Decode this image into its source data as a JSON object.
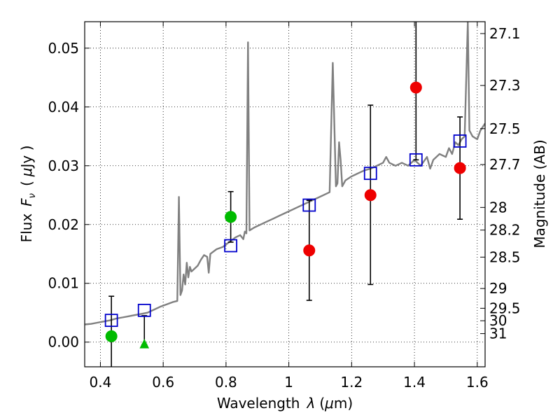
{
  "chart_data": {
    "type": "scatter",
    "xlabel_prefix": "Wavelength",
    "xlabel_var": "λ",
    "xlabel_unit_open": "(",
    "xlabel_unit_mu": "μ",
    "xlabel_unit_rest": "m)",
    "ylabel_prefix": "Flux",
    "ylabel_var": "F",
    "ylabel_sub": "ν",
    "ylabel_unit_open": "(",
    "ylabel_unit_mu": "μ",
    "ylabel_unit_rest": "Jy )",
    "y2label": "Magnitude (AB)",
    "xlim": [
      0.35,
      1.625
    ],
    "ylim": [
      -0.0042,
      0.0545
    ],
    "grid": true,
    "x_ticks": [
      {
        "value": 0.4,
        "label": "0.4"
      },
      {
        "value": 0.6,
        "label": "0.6"
      },
      {
        "value": 0.8,
        "label": "0.8"
      },
      {
        "value": 1.0,
        "label": "1"
      },
      {
        "value": 1.2,
        "label": "1.2"
      },
      {
        "value": 1.4,
        "label": "1.4"
      },
      {
        "value": 1.6,
        "label": "1.6"
      }
    ],
    "y_ticks": [
      {
        "value": 0.0,
        "label": "0.00"
      },
      {
        "value": 0.01,
        "label": "0.01"
      },
      {
        "value": 0.02,
        "label": "0.02"
      },
      {
        "value": 0.03,
        "label": "0.03"
      },
      {
        "value": 0.04,
        "label": "0.04"
      },
      {
        "value": 0.05,
        "label": "0.05"
      }
    ],
    "y2_ticks": [
      {
        "value": 27.1,
        "label": "27.1"
      },
      {
        "value": 27.3,
        "label": "27.3"
      },
      {
        "value": 27.5,
        "label": "27.5"
      },
      {
        "value": 27.7,
        "label": "27.7"
      },
      {
        "value": 28.0,
        "label": "28"
      },
      {
        "value": 28.2,
        "label": "28.2"
      },
      {
        "value": 28.5,
        "label": "28.5"
      },
      {
        "value": 29.0,
        "label": "29"
      },
      {
        "value": 29.5,
        "label": "29.5"
      },
      {
        "value": 30.0,
        "label": "30"
      },
      {
        "value": 31.0,
        "label": "31"
      }
    ],
    "series": [
      {
        "kind": "spectrum_line",
        "color": "#808080",
        "points": [
          [
            0.35,
            0.003
          ],
          [
            0.37,
            0.0031
          ],
          [
            0.39,
            0.0033
          ],
          [
            0.41,
            0.0035
          ],
          [
            0.43,
            0.0037
          ],
          [
            0.45,
            0.004
          ],
          [
            0.47,
            0.0042
          ],
          [
            0.49,
            0.0044
          ],
          [
            0.51,
            0.0046
          ],
          [
            0.53,
            0.0048
          ],
          [
            0.55,
            0.005
          ],
          [
            0.57,
            0.0055
          ],
          [
            0.59,
            0.006
          ],
          [
            0.61,
            0.0064
          ],
          [
            0.63,
            0.0068
          ],
          [
            0.645,
            0.007
          ],
          [
            0.65,
            0.0247
          ],
          [
            0.655,
            0.008
          ],
          [
            0.66,
            0.0088
          ],
          [
            0.665,
            0.0115
          ],
          [
            0.67,
            0.0098
          ],
          [
            0.675,
            0.0135
          ],
          [
            0.68,
            0.011
          ],
          [
            0.685,
            0.0128
          ],
          [
            0.69,
            0.012
          ],
          [
            0.7,
            0.0125
          ],
          [
            0.71,
            0.013
          ],
          [
            0.72,
            0.014
          ],
          [
            0.73,
            0.0148
          ],
          [
            0.74,
            0.0145
          ],
          [
            0.745,
            0.0118
          ],
          [
            0.75,
            0.015
          ],
          [
            0.77,
            0.0158
          ],
          [
            0.79,
            0.0162
          ],
          [
            0.81,
            0.017
          ],
          [
            0.83,
            0.0178
          ],
          [
            0.845,
            0.0182
          ],
          [
            0.855,
            0.0175
          ],
          [
            0.86,
            0.0188
          ],
          [
            0.865,
            0.0185
          ],
          [
            0.87,
            0.051
          ],
          [
            0.875,
            0.019
          ],
          [
            0.89,
            0.0195
          ],
          [
            0.91,
            0.02
          ],
          [
            0.93,
            0.0205
          ],
          [
            0.95,
            0.021
          ],
          [
            0.97,
            0.0215
          ],
          [
            0.99,
            0.022
          ],
          [
            1.01,
            0.0225
          ],
          [
            1.03,
            0.023
          ],
          [
            1.05,
            0.0235
          ],
          [
            1.07,
            0.024
          ],
          [
            1.09,
            0.0245
          ],
          [
            1.11,
            0.025
          ],
          [
            1.13,
            0.0255
          ],
          [
            1.14,
            0.0475
          ],
          [
            1.15,
            0.0265
          ],
          [
            1.155,
            0.027
          ],
          [
            1.16,
            0.034
          ],
          [
            1.165,
            0.031
          ],
          [
            1.17,
            0.0265
          ],
          [
            1.18,
            0.0275
          ],
          [
            1.2,
            0.0282
          ],
          [
            1.22,
            0.0287
          ],
          [
            1.24,
            0.0292
          ],
          [
            1.26,
            0.0295
          ],
          [
            1.28,
            0.03
          ],
          [
            1.3,
            0.0305
          ],
          [
            1.31,
            0.0315
          ],
          [
            1.32,
            0.0305
          ],
          [
            1.34,
            0.03
          ],
          [
            1.36,
            0.0305
          ],
          [
            1.38,
            0.03
          ],
          [
            1.4,
            0.031
          ],
          [
            1.42,
            0.03
          ],
          [
            1.44,
            0.0315
          ],
          [
            1.45,
            0.0295
          ],
          [
            1.46,
            0.031
          ],
          [
            1.48,
            0.032
          ],
          [
            1.5,
            0.0315
          ],
          [
            1.51,
            0.033
          ],
          [
            1.52,
            0.032
          ],
          [
            1.53,
            0.034
          ],
          [
            1.54,
            0.0335
          ],
          [
            1.55,
            0.0345
          ],
          [
            1.56,
            0.035
          ],
          [
            1.57,
            0.0545
          ],
          [
            1.575,
            0.036
          ],
          [
            1.585,
            0.035
          ],
          [
            1.6,
            0.0345
          ],
          [
            1.61,
            0.036
          ],
          [
            1.625,
            0.0372
          ]
        ]
      },
      {
        "kind": "model_boxes",
        "color": "#0000cc",
        "points": [
          [
            0.435,
            0.0037
          ],
          [
            0.54,
            0.0054
          ],
          [
            0.815,
            0.0164
          ],
          [
            1.065,
            0.0233
          ],
          [
            1.26,
            0.0287
          ],
          [
            1.405,
            0.031
          ],
          [
            1.545,
            0.0342
          ]
        ]
      },
      {
        "kind": "detections",
        "points": [
          {
            "x": 0.435,
            "y": 0.001,
            "ylo": -0.0042,
            "yhi": 0.0078,
            "color": "#00bb00",
            "marker": "circle"
          },
          {
            "x": 0.54,
            "y": -0.0004,
            "ylo": -0.0004,
            "yhi": 0.0045,
            "color": "#00bb00",
            "marker": "triangle"
          },
          {
            "x": 0.815,
            "y": 0.0213,
            "ylo": 0.017,
            "yhi": 0.0256,
            "color": "#00bb00",
            "marker": "circle"
          },
          {
            "x": 1.065,
            "y": 0.0156,
            "ylo": 0.0071,
            "yhi": 0.0241,
            "color": "#ee0000",
            "marker": "circle"
          },
          {
            "x": 1.26,
            "y": 0.025,
            "ylo": 0.0098,
            "yhi": 0.0403,
            "color": "#ee0000",
            "marker": "circle"
          },
          {
            "x": 1.405,
            "y": 0.0433,
            "ylo": 0.031,
            "yhi": 0.0545,
            "color": "#ee0000",
            "marker": "circle"
          },
          {
            "x": 1.545,
            "y": 0.0296,
            "ylo": 0.0209,
            "yhi": 0.0383,
            "color": "#ee0000",
            "marker": "circle"
          }
        ]
      }
    ]
  }
}
